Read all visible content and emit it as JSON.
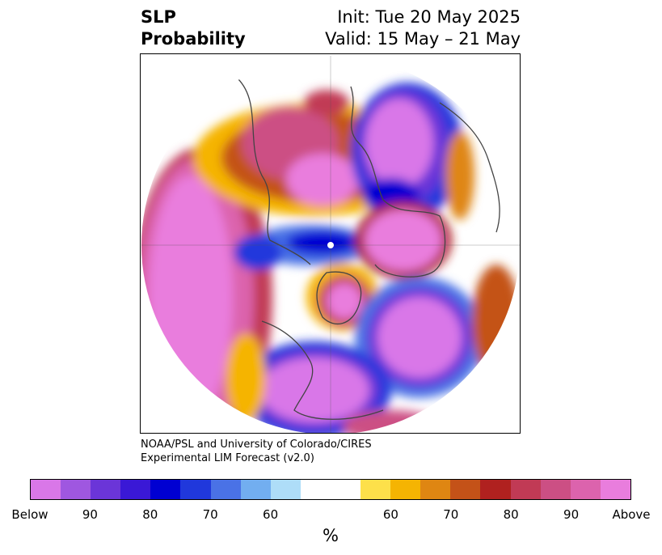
{
  "title": {
    "left_line1": "SLP",
    "left_line2": "Probability",
    "right_line1": "Init: Tue 20 May 2025",
    "right_line2": "Valid: 15 May – 21 May"
  },
  "credit": {
    "line1": "NOAA/PSL and University of Colorado/CIRES",
    "line2": "Experimental LIM Forecast (v2.0)"
  },
  "colorbar": {
    "colors": [
      "#d977e8",
      "#9f57e0",
      "#6b35d8",
      "#3a18d6",
      "#0000d2",
      "#2038dc",
      "#4a72e6",
      "#72aef0",
      "#aeddf8",
      "#ffffff",
      "#ffffff",
      "#fde04a",
      "#f5b402",
      "#df8612",
      "#c45218",
      "#b0211f",
      "#c13a55",
      "#cc4f84",
      "#dc63ad",
      "#e97ddd"
    ],
    "tick_labels": [
      "Below",
      "90",
      "80",
      "70",
      "60",
      "60",
      "70",
      "80",
      "90",
      "Above"
    ],
    "unit_label": "%"
  },
  "map": {
    "projection": "north-polar-stereographic",
    "below_color": "#d977e8",
    "above_color": "#e97ddd"
  }
}
